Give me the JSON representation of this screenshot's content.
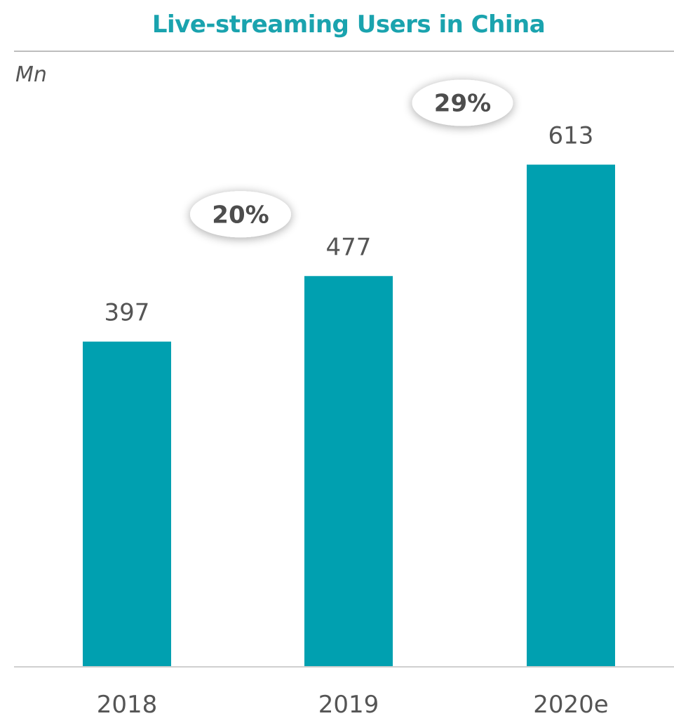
{
  "chart_data": {
    "type": "bar",
    "title": "Live-streaming Users in China",
    "unit_label": "Mn",
    "categories": [
      "2018",
      "2019",
      "2020e"
    ],
    "values": [
      397,
      477,
      613
    ],
    "value_labels": [
      "397",
      "477",
      "613"
    ],
    "growth_annotations": [
      {
        "label": "20%",
        "between": [
          "2018",
          "2019"
        ]
      },
      {
        "label": "29%",
        "between": [
          "2019",
          "2020e"
        ]
      }
    ],
    "ylim": [
      0,
      700
    ],
    "grid": false,
    "legend": "none",
    "colors": {
      "bar": "#00A0B0",
      "title": "#1AA3AE",
      "text": "#555555",
      "growth_text": "#4D4D4D",
      "rule": "#BDBDBD",
      "axis": "#CFCFCF"
    }
  }
}
